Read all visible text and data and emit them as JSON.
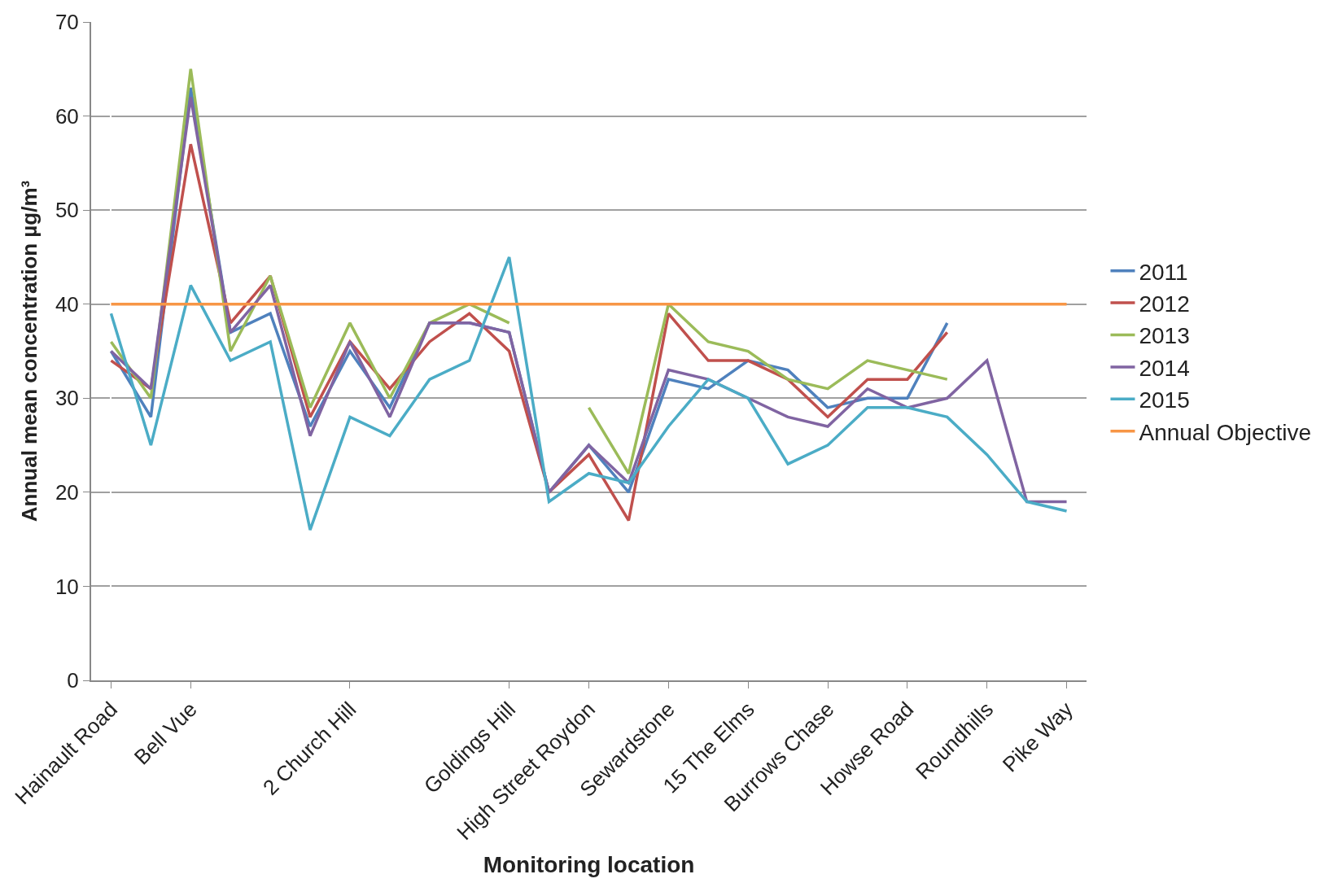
{
  "chart_data": {
    "type": "line",
    "xlabel": "Monitoring location",
    "ylabel": "Annual mean concentration µg/m³",
    "categories": [
      "Hainault Road",
      null,
      "Bell Vue",
      null,
      null,
      null,
      "2 Church Hill",
      null,
      null,
      null,
      "Goldings Hill",
      null,
      "High Street Roydon",
      null,
      "Sewardstone",
      null,
      "15 The Elms",
      null,
      "Burrows Chase",
      null,
      "Howse Road",
      null,
      "Roundhills",
      null,
      "Pike Way"
    ],
    "series": [
      {
        "name": "2011",
        "color": "#4f81bd",
        "values": [
          35,
          28,
          63,
          37,
          39,
          27,
          35,
          29,
          38,
          38,
          37,
          20,
          25,
          20,
          32,
          31,
          34,
          33,
          29,
          30,
          30,
          38,
          null,
          null,
          null
        ]
      },
      {
        "name": "2012",
        "color": "#c0504d",
        "values": [
          34,
          31,
          57,
          38,
          43,
          28,
          36,
          31,
          36,
          39,
          35,
          20,
          24,
          17,
          39,
          34,
          34,
          32,
          28,
          32,
          32,
          37,
          null,
          null,
          null
        ]
      },
      {
        "name": "2013",
        "color": "#9bbb59",
        "values": [
          36,
          30,
          65,
          35,
          43,
          29,
          38,
          30,
          38,
          40,
          38,
          null,
          29,
          22,
          40,
          36,
          35,
          32,
          31,
          34,
          33,
          32,
          null,
          null,
          null
        ]
      },
      {
        "name": "2014",
        "color": "#8064a2",
        "values": [
          35,
          31,
          62,
          37,
          42,
          26,
          36,
          28,
          38,
          38,
          37,
          20,
          25,
          21,
          33,
          32,
          30,
          28,
          27,
          31,
          29,
          30,
          34,
          19,
          19
        ]
      },
      {
        "name": "2015",
        "color": "#4bacc6",
        "values": [
          39,
          25,
          42,
          34,
          36,
          16,
          28,
          26,
          32,
          34,
          45,
          19,
          22,
          21,
          27,
          32,
          30,
          23,
          25,
          29,
          29,
          28,
          24,
          19,
          18
        ]
      },
      {
        "name": "Annual Objective",
        "color": "#f79646",
        "values": [
          40,
          40,
          40,
          40,
          40,
          40,
          40,
          40,
          40,
          40,
          40,
          40,
          40,
          40,
          40,
          40,
          40,
          40,
          40,
          40,
          40,
          40,
          40,
          40,
          40
        ]
      }
    ],
    "ylim": [
      0,
      70
    ],
    "yticks": [
      0,
      10,
      20,
      30,
      40,
      50,
      60,
      70
    ],
    "grid": "y",
    "legend": "right",
    "marker": "none",
    "line_style": "solid"
  }
}
